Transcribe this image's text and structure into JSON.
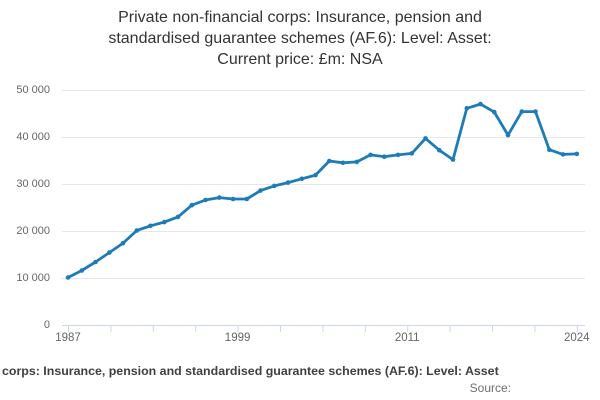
{
  "title": {
    "lines": [
      "Private non-financial corps: Insurance, pension and",
      "standardised guarantee schemes (AF.6): Level: Asset:",
      "Current price: £m: NSA"
    ]
  },
  "chart_data": {
    "type": "line",
    "title": "Private non-financial corps: Insurance, pension and standardised guarantee schemes (AF.6): Level: Asset: Current price: £m: NSA",
    "x": [
      1987,
      1988,
      1989,
      1990,
      1991,
      1992,
      1993,
      1994,
      1995,
      1996,
      1997,
      1998,
      1999,
      2000,
      2001,
      2002,
      2003,
      2004,
      2005,
      2006,
      2007,
      2008,
      2009,
      2010,
      2011,
      2012,
      2013,
      2014,
      2015,
      2016,
      2017,
      2018,
      2019,
      2020,
      2021,
      2022,
      2023,
      2024
    ],
    "values": [
      10100,
      11600,
      13400,
      15400,
      17400,
      20100,
      21100,
      21900,
      23000,
      25500,
      26600,
      27100,
      26800,
      26800,
      28600,
      29600,
      30300,
      31100,
      31900,
      34900,
      34500,
      34700,
      36200,
      35800,
      36200,
      36500,
      39700,
      37200,
      35200,
      46100,
      47000,
      45300,
      40400,
      45400,
      45400,
      37300,
      36300,
      36400
    ],
    "xlabel": "",
    "ylabel": "",
    "ylim": [
      0,
      50000
    ],
    "xlim": [
      1987,
      2024
    ],
    "grid": true,
    "legend": "none",
    "y_ticks": [
      0,
      10000,
      20000,
      30000,
      40000,
      50000
    ],
    "y_tick_labels": [
      "0",
      "10 000",
      "20 000",
      "30 000",
      "40 000",
      "50 000"
    ],
    "x_tick_count": 13,
    "x_tick_labels": [
      {
        "label": "1987",
        "tick": 0
      },
      {
        "label": "1999",
        "tick": 4
      },
      {
        "label": "2011",
        "tick": 8
      },
      {
        "label": "2024",
        "tick": 12
      }
    ],
    "line_color": "#1d7cb8",
    "grid_color": "#e6e6e6",
    "axis_color": "#ccd6eb",
    "label_color": "#666666"
  },
  "caption": {
    "text": "corps: Insurance, pension and standardised guarantee schemes (AF.6): Level: Asset",
    "source_label": "Source:"
  }
}
